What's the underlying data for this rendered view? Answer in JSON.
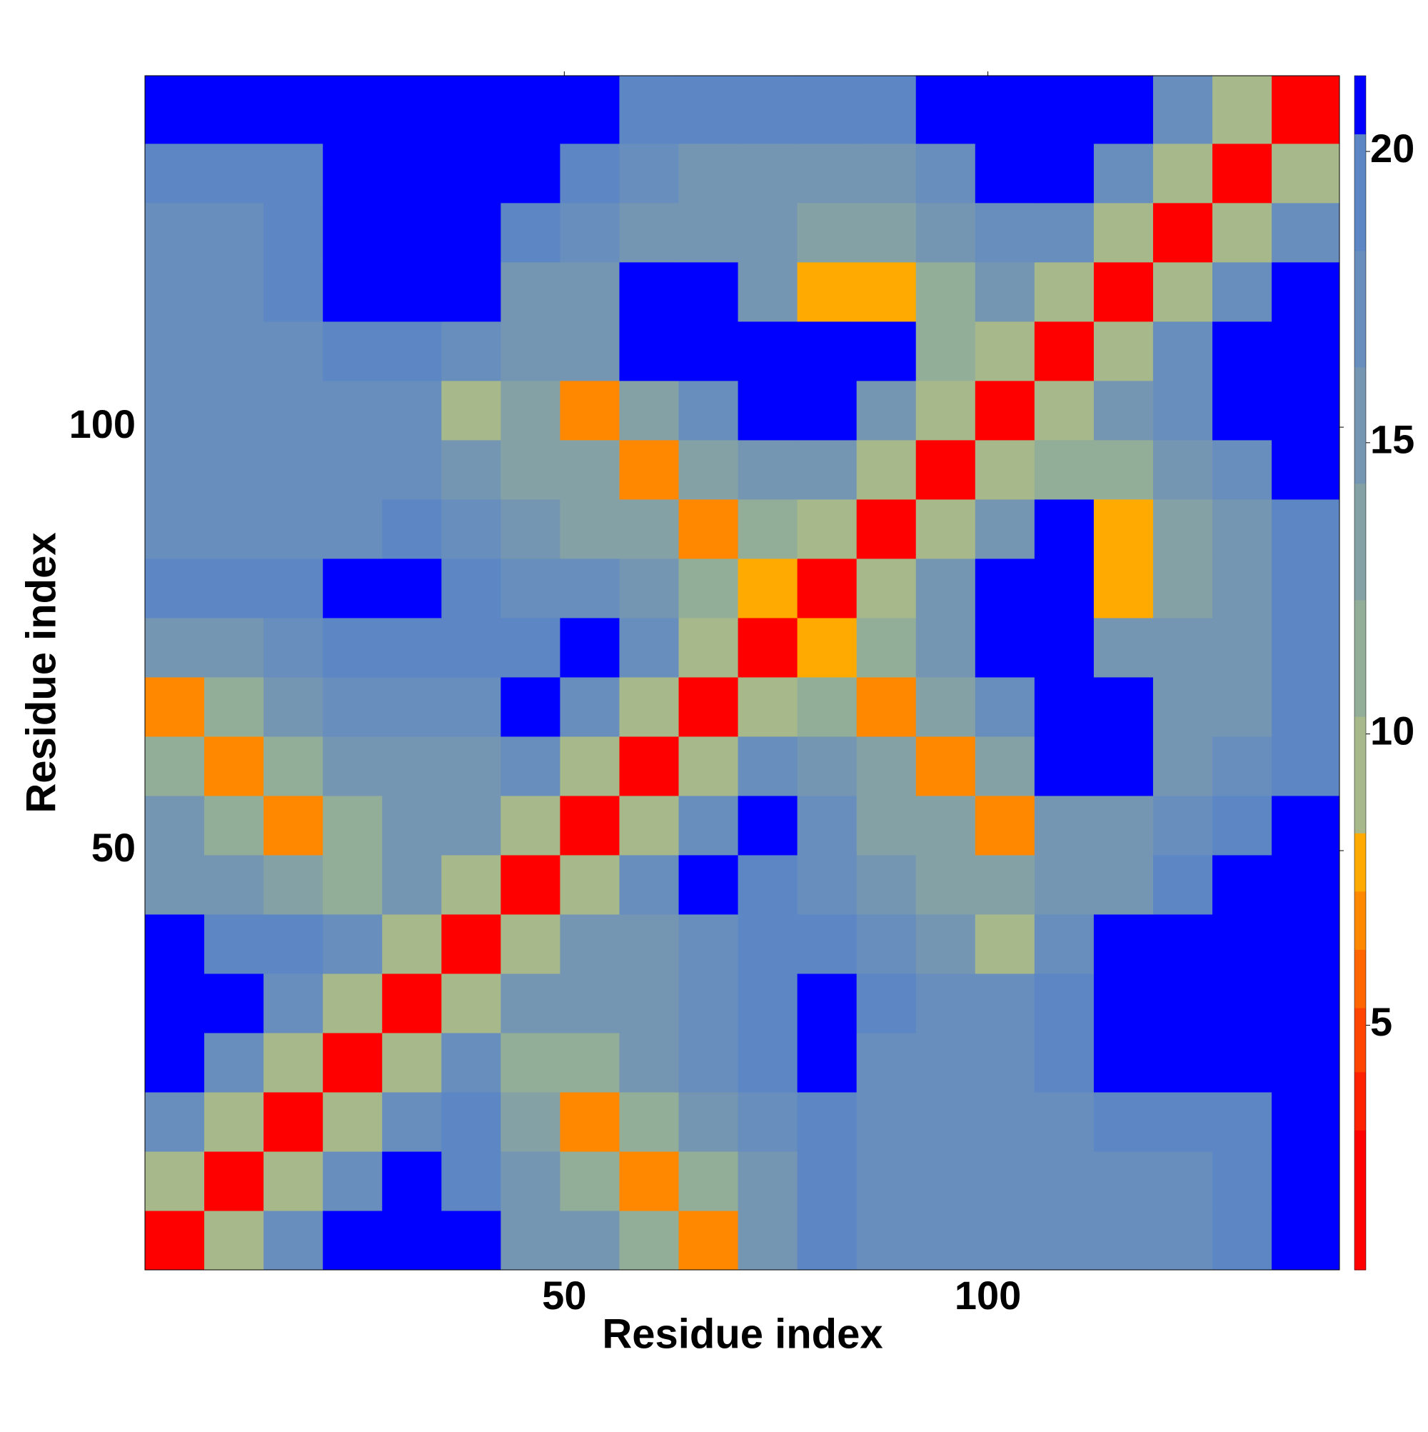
{
  "chart_data": {
    "type": "heatmap",
    "xlabel": "Residue index",
    "ylabel": "Residue index",
    "xbins": [
      0.5,
      7.5,
      14.5,
      21.5,
      28.5,
      35.5,
      42.5,
      49.5,
      56.5,
      63.5,
      70.5,
      77.5,
      84.5,
      91.5,
      98.5,
      105.5,
      112.5,
      119.5,
      126.5,
      133.5,
      141.5
    ],
    "ybins": [
      0.5,
      7.5,
      14.5,
      21.5,
      28.5,
      35.5,
      42.5,
      49.5,
      56.5,
      63.5,
      70.5,
      77.5,
      84.5,
      91.5,
      98.5,
      105.5,
      112.5,
      119.5,
      126.5,
      133.5,
      141.5
    ],
    "xlim": [
      0.5,
      141.5
    ],
    "ylim": [
      0.5,
      141.5
    ],
    "xticks": [
      50,
      100
    ],
    "yticks": [
      50,
      100
    ],
    "clim": [
      0.8,
      21.3
    ],
    "cticks": [
      5,
      10,
      15,
      20
    ],
    "colorscale": [
      [
        3.2,
        "#ff0000"
      ],
      [
        4.2,
        "#ff2200"
      ],
      [
        5.3,
        "#ff4400"
      ],
      [
        6.3,
        "#ff6600"
      ],
      [
        7.3,
        "#ff8800"
      ],
      [
        8.3,
        "#ffaa00"
      ],
      [
        10.3,
        "#a7b98a"
      ],
      [
        12.3,
        "#93ae98"
      ],
      [
        14.3,
        "#84a2a6"
      ],
      [
        16.3,
        "#7596b2"
      ],
      [
        18.3,
        "#678ebd"
      ],
      [
        20.3,
        "#5c87c4"
      ],
      [
        21.3,
        "#0000ff"
      ]
    ],
    "z": [
      [
        3,
        10,
        17,
        21,
        21,
        21,
        16,
        16,
        12,
        7,
        15,
        19,
        18,
        18,
        18,
        18,
        18,
        18,
        19,
        21
      ],
      [
        10,
        3,
        10,
        17,
        21,
        19,
        15,
        12,
        7,
        12,
        16,
        19,
        18,
        18,
        18,
        18,
        18,
        18,
        19,
        21
      ],
      [
        17,
        10,
        3,
        10,
        17,
        19,
        14,
        7,
        12,
        15,
        17,
        19,
        18,
        18,
        18,
        18,
        19,
        19,
        19,
        21
      ],
      [
        21,
        17,
        10,
        3,
        10,
        17,
        12,
        12,
        15,
        17,
        19,
        21,
        18,
        18,
        18,
        19,
        21,
        21,
        21,
        21
      ],
      [
        21,
        21,
        17,
        10,
        3,
        10,
        15,
        15,
        16,
        17,
        19,
        21,
        19,
        18,
        18,
        19,
        21,
        21,
        21,
        21
      ],
      [
        21,
        19,
        19,
        17,
        10,
        3,
        10,
        16,
        16,
        17,
        19,
        19,
        18,
        16,
        9,
        17,
        21,
        21,
        21,
        21
      ],
      [
        16,
        15,
        14,
        12,
        15,
        10,
        3,
        10,
        17,
        21,
        19,
        17,
        16,
        13,
        13,
        16,
        16,
        19,
        21,
        21
      ],
      [
        16,
        12,
        7,
        12,
        15,
        16,
        10,
        3,
        10,
        17,
        21,
        17,
        13,
        13,
        7,
        16,
        16,
        17,
        19,
        21
      ],
      [
        12,
        7,
        12,
        15,
        16,
        16,
        17,
        10,
        3,
        10,
        17,
        16,
        13,
        7,
        13,
        21,
        21,
        16,
        17,
        19
      ],
      [
        7,
        12,
        15,
        17,
        17,
        17,
        21,
        17,
        10,
        3,
        10,
        12,
        7,
        13,
        17,
        21,
        21,
        15,
        15,
        19
      ],
      [
        15,
        16,
        17,
        19,
        19,
        19,
        19,
        21,
        17,
        10,
        3,
        8,
        11,
        15,
        21,
        21,
        15,
        15,
        16,
        19
      ],
      [
        19,
        19,
        19,
        21,
        21,
        19,
        17,
        17,
        16,
        12,
        8,
        3,
        9,
        15,
        21,
        21,
        8,
        14,
        16,
        19
      ],
      [
        18,
        18,
        18,
        18,
        19,
        18,
        16,
        13,
        13,
        7,
        11,
        9,
        3,
        10,
        15,
        21,
        8,
        13,
        16,
        19
      ],
      [
        18,
        18,
        18,
        18,
        18,
        16,
        13,
        13,
        7,
        13,
        15,
        15,
        10,
        3,
        10,
        12,
        12,
        15,
        17,
        21
      ],
      [
        18,
        18,
        18,
        18,
        18,
        9,
        13,
        7,
        13,
        17,
        21,
        21,
        15,
        10,
        3,
        10,
        16,
        18,
        21,
        21
      ],
      [
        18,
        18,
        18,
        19,
        19,
        17,
        16,
        16,
        21,
        21,
        21,
        21,
        21,
        12,
        10,
        3,
        10,
        17,
        21,
        21
      ],
      [
        18,
        18,
        19,
        21,
        21,
        21,
        16,
        16,
        21,
        21,
        15,
        8,
        8,
        12,
        16,
        10,
        3,
        10,
        17,
        21
      ],
      [
        18,
        18,
        19,
        21,
        21,
        21,
        19,
        17,
        16,
        15,
        15,
        14,
        13,
        15,
        18,
        17,
        10,
        3,
        10,
        17
      ],
      [
        19,
        19,
        19,
        21,
        21,
        21,
        21,
        19,
        17,
        15,
        16,
        16,
        16,
        17,
        21,
        21,
        17,
        10,
        3,
        10
      ],
      [
        21,
        21,
        21,
        21,
        21,
        21,
        21,
        21,
        19,
        19,
        19,
        19,
        19,
        21,
        21,
        21,
        21,
        17,
        10,
        3
      ]
    ]
  }
}
